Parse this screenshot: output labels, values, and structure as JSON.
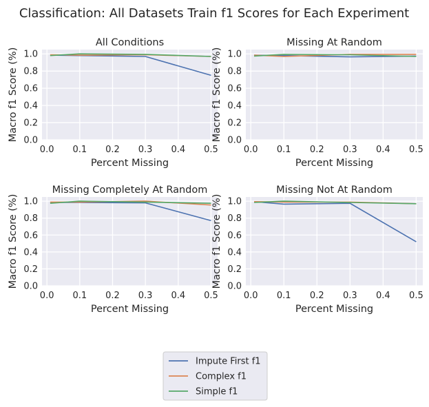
{
  "figure": {
    "title": "Classification: All Datasets Train f1 Scores for Each Experiment"
  },
  "colors": {
    "Impute First f1": "#4c72b0",
    "Complex f1": "#dd8452",
    "Simple f1": "#55a868",
    "panel_bg": "#eaeaf2",
    "grid": "#ffffff"
  },
  "legend": {
    "placement": "bottom-center",
    "entries": [
      "Impute First f1",
      "Complex f1",
      "Simple f1"
    ]
  },
  "chart_data": [
    {
      "type": "line",
      "title": "All Conditions",
      "xlabel": "Percent Missing",
      "ylabel": "Macro f1 Score (%)",
      "x": [
        0.01,
        0.1,
        0.3,
        0.5
      ],
      "xlim": [
        -0.015,
        0.52
      ],
      "ylim": [
        0,
        1.05
      ],
      "xticks": [
        "0.0",
        "0.1",
        "0.2",
        "0.3",
        "0.4",
        "0.5"
      ],
      "yticks": [
        "0.0",
        "0.2",
        "0.4",
        "0.6",
        "0.8",
        "1.0"
      ],
      "grid": true,
      "series": [
        {
          "name": "Impute First f1",
          "values": [
            0.985,
            0.98,
            0.97,
            0.75
          ]
        },
        {
          "name": "Complex f1",
          "values": [
            0.99,
            0.985,
            0.99,
            0.97
          ]
        },
        {
          "name": "Simple f1",
          "values": [
            0.98,
            1.0,
            0.995,
            0.97
          ]
        }
      ]
    },
    {
      "type": "line",
      "title": "Missing At Random",
      "xlabel": "Percent Missing",
      "ylabel": "Macro f1 Score (%)",
      "x": [
        0.01,
        0.1,
        0.3,
        0.5
      ],
      "xlim": [
        -0.015,
        0.52
      ],
      "ylim": [
        0,
        1.05
      ],
      "xticks": [
        "0.0",
        "0.1",
        "0.2",
        "0.3",
        "0.4",
        "0.5"
      ],
      "yticks": [
        "0.0",
        "0.2",
        "0.4",
        "0.6",
        "0.8",
        "1.0"
      ],
      "grid": true,
      "series": [
        {
          "name": "Impute First f1",
          "values": [
            0.985,
            0.98,
            0.965,
            0.975
          ]
        },
        {
          "name": "Complex f1",
          "values": [
            0.985,
            0.97,
            0.995,
            0.995
          ]
        },
        {
          "name": "Simple f1",
          "values": [
            0.975,
            0.995,
            0.99,
            0.97
          ]
        }
      ]
    },
    {
      "type": "line",
      "title": "Missing Completely At Random",
      "xlabel": "Percent Missing",
      "ylabel": "Macro f1 Score (%)",
      "x": [
        0.01,
        0.1,
        0.3,
        0.5
      ],
      "xlim": [
        -0.015,
        0.52
      ],
      "ylim": [
        0,
        1.05
      ],
      "xticks": [
        "0.0",
        "0.1",
        "0.2",
        "0.3",
        "0.4",
        "0.5"
      ],
      "yticks": [
        "0.0",
        "0.2",
        "0.4",
        "0.6",
        "0.8",
        "1.0"
      ],
      "grid": true,
      "series": [
        {
          "name": "Impute First f1",
          "values": [
            0.985,
            0.985,
            0.98,
            0.77
          ]
        },
        {
          "name": "Complex f1",
          "values": [
            0.99,
            0.99,
            1.0,
            0.955
          ]
        },
        {
          "name": "Simple f1",
          "values": [
            0.975,
            1.0,
            0.99,
            0.975
          ]
        }
      ]
    },
    {
      "type": "line",
      "title": "Missing Not At Random",
      "xlabel": "Percent Missing",
      "ylabel": "Macro f1 Score (%)",
      "x": [
        0.01,
        0.1,
        0.3,
        0.5
      ],
      "xlim": [
        -0.015,
        0.52
      ],
      "ylim": [
        0,
        1.05
      ],
      "xticks": [
        "0.0",
        "0.1",
        "0.2",
        "0.3",
        "0.4",
        "0.5"
      ],
      "yticks": [
        "0.0",
        "0.2",
        "0.4",
        "0.6",
        "0.8",
        "1.0"
      ],
      "grid": true,
      "series": [
        {
          "name": "Impute First f1",
          "values": [
            0.995,
            0.965,
            0.975,
            0.52
          ]
        },
        {
          "name": "Complex f1",
          "values": [
            0.995,
            0.99,
            0.99,
            0.97
          ]
        },
        {
          "name": "Simple f1",
          "values": [
            0.985,
            1.0,
            0.985,
            0.97
          ]
        }
      ]
    }
  ]
}
